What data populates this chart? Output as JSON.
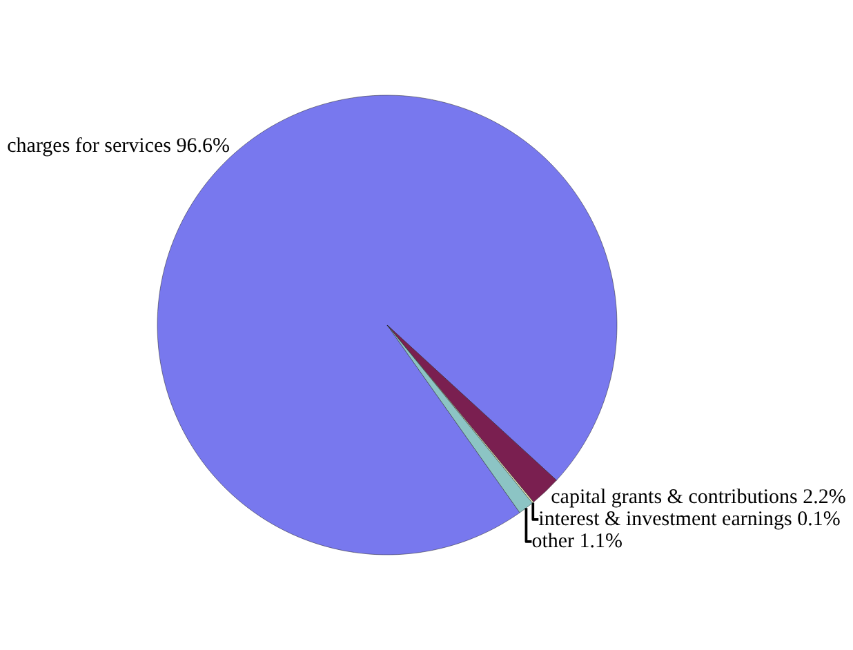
{
  "chart_data": {
    "type": "pie",
    "categories": [
      "charges for services",
      "capital grants & contributions",
      "interest & investment earnings",
      "other"
    ],
    "values": [
      96.6,
      2.2,
      0.1,
      1.1
    ],
    "colors": [
      "#7878ee",
      "#7a1f50",
      "#f4f0c0",
      "#8cc4c4"
    ],
    "value_labels": [
      "96.6%",
      "2.2%",
      "0.1%",
      "1.1%"
    ],
    "legend": false
  }
}
